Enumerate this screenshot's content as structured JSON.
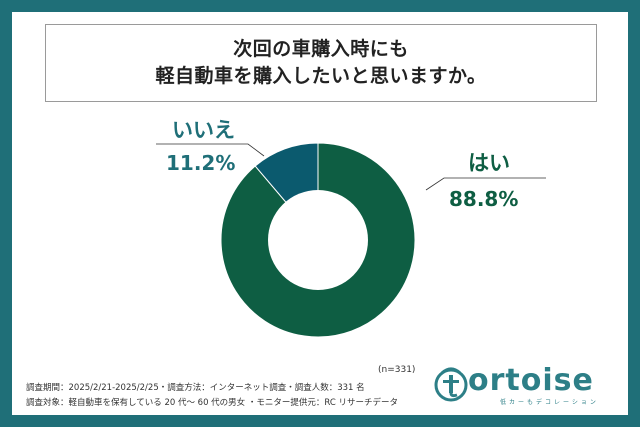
{
  "header": {
    "title_line1": "次回の車購入時にも",
    "title_line2": "軽自動車を購入したいと思いますか。"
  },
  "chart_data": {
    "type": "pie",
    "title": "次回の車購入時にも 軽自動車を購入したいと思いますか。",
    "slices": [
      {
        "label": "はい",
        "value": 88.8,
        "value_label": "88.8%",
        "color": "#0e5e43"
      },
      {
        "label": "いいえ",
        "value": 11.2,
        "value_label": "11.2%",
        "color": "#0b5a6e"
      }
    ],
    "sample_note": "(n=331)"
  },
  "footer": {
    "line1": "調査期間：2025/2/21-2025/2/25・調査方法：インターネット調査・調査人数：331 名",
    "line2": "調査対象：軽自動車を保有している 20 代～ 60 代の男女 ・モニター提供元：RC リサーチデータ"
  },
  "logo": {
    "text": "ortoise",
    "subtext": "低カーもデコレーション"
  },
  "colors": {
    "frame": "#1f6f78",
    "yes": "#0e5e43",
    "no": "#0b5a6e",
    "label_yes": "#0e5e43",
    "label_no": "#1f6f78"
  }
}
